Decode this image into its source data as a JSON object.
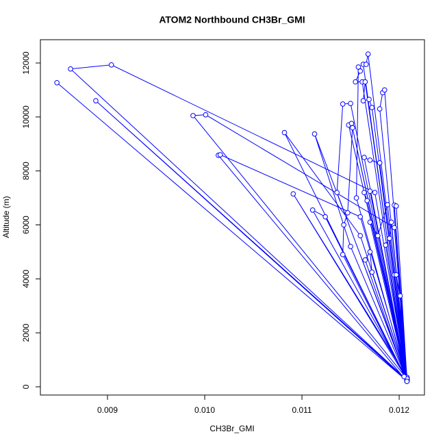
{
  "chart_data": {
    "type": "line",
    "markers": true,
    "title": "ATOM2 Northbound CH3Br_GMI",
    "x_label": "CH3Br_GMI",
    "y_label": "Altitude (m)",
    "color": "#0000ff",
    "xlim": [
      0.00831,
      0.01226
    ],
    "ylim": [
      -305,
      12863
    ],
    "xticks": [
      0.009,
      {
        "value": 0.01,
        "label": "0.010"
      },
      0.011,
      0.012
    ],
    "yticks": [
      0,
      2000,
      4000,
      6000,
      8000,
      10000,
      12000
    ],
    "x": [
      0.00848,
      0.01208,
      0.00888,
      0.01208,
      0.00862,
      0.00904,
      0.01175,
      0.01208,
      0.00988,
      0.01001,
      0.01195,
      0.01208,
      0.01014,
      0.01016,
      0.0116,
      0.01208,
      0.01091,
      0.01208,
      0.01111,
      0.01124,
      0.01208,
      0.01082,
      0.0116,
      0.01208,
      0.01113,
      0.0115,
      0.01208,
      0.01136,
      0.01142,
      0.0115,
      0.01208,
      0.01142,
      0.01143,
      0.01147,
      0.01152,
      0.01208,
      0.01148,
      0.01151,
      0.01208,
      0.01156,
      0.01158,
      0.0116,
      0.01155,
      0.01162,
      0.01208,
      0.01163,
      0.01166,
      0.01168,
      0.01208,
      0.01165,
      0.01163,
      0.01169,
      0.01172,
      0.01208,
      0.0118,
      0.01183,
      0.01185,
      0.01208,
      0.01164,
      0.0117,
      0.0118,
      0.01208,
      0.0117,
      0.01164,
      0.01167,
      0.01208,
      0.0117,
      0.01178,
      0.01188,
      0.01208,
      0.01195,
      0.01197,
      0.01208,
      0.01192,
      0.0119,
      0.01186,
      0.01208,
      0.01165,
      0.0117,
      0.01172,
      0.01208,
      0.01195,
      0.01197,
      0.01201,
      0.01205,
      0.01208
    ],
    "values": [
      11270,
      220,
      10600,
      260,
      11780,
      11930,
      7200,
      300,
      10050,
      10080,
      5900,
      200,
      8580,
      8600,
      6300,
      350,
      7150,
      280,
      6550,
      6300,
      240,
      9420,
      5600,
      320,
      9370,
      5200,
      260,
      7200,
      10480,
      10500,
      210,
      4900,
      6000,
      6450,
      9600,
      330,
      9700,
      9760,
      250,
      7000,
      11850,
      11700,
      11300,
      11300,
      220,
      11950,
      11950,
      12330,
      290,
      11300,
      10600,
      10650,
      10350,
      260,
      10300,
      10900,
      11000,
      300,
      8500,
      8400,
      8300,
      240,
      7250,
      7200,
      6900,
      220,
      6100,
      5600,
      6750,
      350,
      6730,
      6700,
      270,
      6100,
      5500,
      5250,
      230,
      4700,
      5000,
      4250,
      300,
      4150,
      4150,
      3370,
      380,
      200
    ]
  }
}
